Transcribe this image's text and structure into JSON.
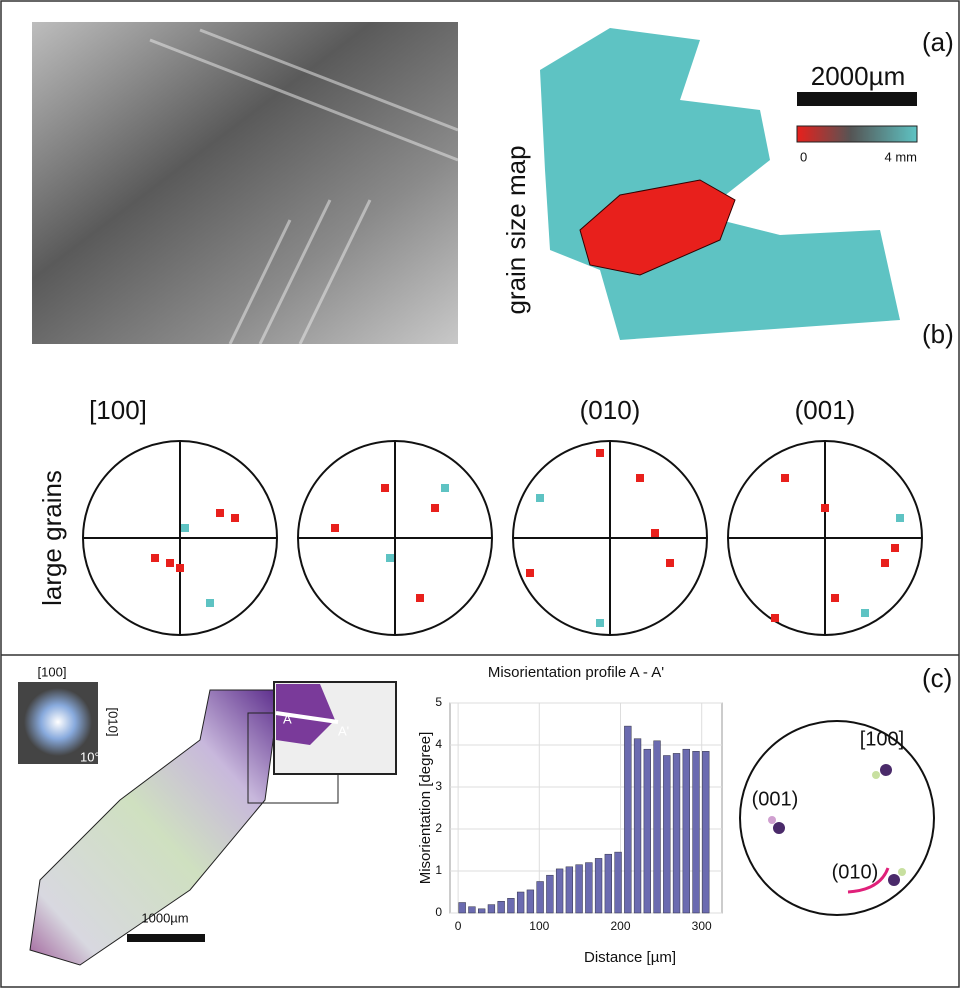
{
  "panels": {
    "a": {
      "label": "(a)",
      "map_title": "grain size map",
      "scale_bar": "2000µm",
      "color_min": "0",
      "color_max": "4 mm"
    },
    "b": {
      "label": "(b)",
      "row_label": "large grains",
      "net_labels": [
        "[100]",
        "(010)",
        "(001)"
      ]
    },
    "c": {
      "label": "(c)",
      "key_top": "[100]",
      "key_side": "[010]",
      "key_angle": "10°",
      "profile_start": "A",
      "profile_end": "A'",
      "scale_bar": "1000µm",
      "pole_labels": [
        "(001)",
        "[100]",
        "(010)"
      ]
    }
  },
  "chart_data": {
    "type": "bar",
    "title": "Misorientation profile A - A'",
    "x_label": "Distance [µm]",
    "y_label": "Misorientation [degree]",
    "x": [
      5,
      17,
      29,
      41,
      53,
      65,
      77,
      89,
      101,
      113,
      125,
      137,
      149,
      161,
      173,
      185,
      197,
      209,
      221,
      233,
      245,
      257,
      269,
      281,
      293,
      305
    ],
    "values": [
      0.25,
      0.15,
      0.1,
      0.2,
      0.28,
      0.35,
      0.5,
      0.55,
      0.75,
      0.9,
      1.05,
      1.1,
      1.15,
      1.2,
      1.3,
      1.4,
      1.45,
      4.45,
      4.15,
      3.9,
      4.1,
      3.75,
      3.8,
      3.9,
      3.85,
      3.85
    ],
    "color": "#6b6bb0",
    "xlim": [
      -10,
      325
    ],
    "ylim": [
      0,
      5
    ],
    "xticks": [
      0,
      100,
      200,
      300
    ],
    "yticks": [
      0,
      1,
      2,
      3,
      4,
      5
    ],
    "grid": true
  }
}
